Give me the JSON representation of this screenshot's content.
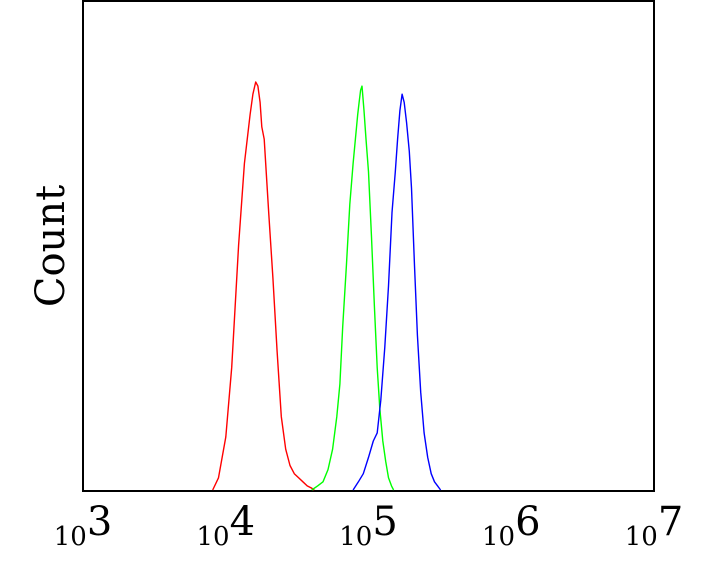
{
  "chart_data": {
    "type": "line",
    "subtype": "flow-cytometry-histogram",
    "title": "",
    "xlabel": "",
    "ylabel": "Count",
    "x_scale": "log10",
    "xlim": [
      1000,
      10000000
    ],
    "ylim": [
      0,
      1
    ],
    "grid": false,
    "legend": "none",
    "x_ticks": [
      {
        "base": "10",
        "exp": "3"
      },
      {
        "base": "10",
        "exp": "4"
      },
      {
        "base": "10",
        "exp": "5"
      },
      {
        "base": "10",
        "exp": "6"
      },
      {
        "base": "10",
        "exp": "7"
      }
    ],
    "series": [
      {
        "color": "#ff0000",
        "x": [
          8100,
          8900,
          10000,
          11000,
          12300,
          13500,
          14800,
          15500,
          16200,
          16800,
          17400,
          17900,
          18600,
          19200,
          20000,
          21400,
          22900,
          24500,
          26300,
          28200,
          30200,
          32400,
          34700,
          37200,
          39800,
          41700
        ],
        "y": [
          0.0,
          0.03,
          0.13,
          0.3,
          0.6,
          0.8,
          0.92,
          0.97,
          1.0,
          0.99,
          0.95,
          0.89,
          0.86,
          0.78,
          0.68,
          0.52,
          0.34,
          0.18,
          0.1,
          0.06,
          0.04,
          0.03,
          0.02,
          0.01,
          0.005,
          0.0
        ]
      },
      {
        "color": "#00ff00",
        "x": [
          40000,
          44000,
          48000,
          52000,
          56000,
          60000,
          63000,
          66000,
          70000,
          74000,
          78000,
          81000,
          84000,
          86000,
          88000,
          90000,
          93000,
          96000,
          100000,
          105000,
          110000,
          115000,
          120000,
          126000,
          132000,
          138000,
          145000,
          150000
        ],
        "y": [
          0.0,
          0.01,
          0.02,
          0.05,
          0.1,
          0.18,
          0.26,
          0.4,
          0.55,
          0.7,
          0.8,
          0.86,
          0.92,
          0.95,
          0.98,
          0.99,
          0.93,
          0.86,
          0.78,
          0.62,
          0.45,
          0.3,
          0.2,
          0.12,
          0.07,
          0.03,
          0.01,
          0.0
        ]
      },
      {
        "color": "#0000ff",
        "x": [
          78000,
          85000,
          92000,
          100000,
          108000,
          115000,
          122000,
          130000,
          138000,
          146000,
          154000,
          160000,
          166000,
          172000,
          178000,
          185000,
          193000,
          200000,
          210000,
          220000,
          232000,
          245000,
          260000,
          275000,
          290000,
          305000,
          320000
        ],
        "y": [
          0.0,
          0.02,
          0.04,
          0.08,
          0.12,
          0.14,
          0.22,
          0.35,
          0.5,
          0.68,
          0.78,
          0.86,
          0.93,
          0.97,
          0.95,
          0.9,
          0.83,
          0.74,
          0.55,
          0.38,
          0.24,
          0.14,
          0.08,
          0.04,
          0.02,
          0.01,
          0.0
        ]
      }
    ]
  }
}
